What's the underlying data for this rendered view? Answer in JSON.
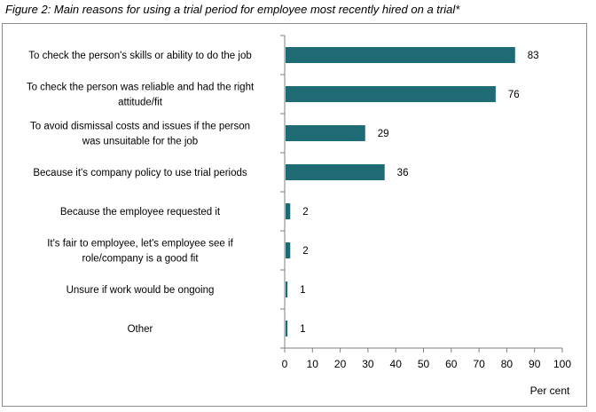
{
  "figure_title": "Figure 2: Main reasons for using a trial period for employee most recently hired on a trial*",
  "colors": {
    "bar": "#1f6b75",
    "axis": "#7f7f7f",
    "frame": "#8c8c8c"
  },
  "chart_data": {
    "type": "bar",
    "orientation": "horizontal",
    "categories": [
      [
        "To check the person's skills or ability to do the job"
      ],
      [
        "To check the person was reliable and had the right",
        "attitude/fit"
      ],
      [
        "To avoid dismissal costs and issues if the person",
        "was unsuitable for the job"
      ],
      [
        "Because it's company policy to use trial periods"
      ],
      [
        "Because the employee requested it"
      ],
      [
        "It's fair to employee, let's employee see if",
        "role/company is a good fit"
      ],
      [
        "Unsure if work would be ongoing"
      ],
      [
        "Other"
      ]
    ],
    "values": [
      83,
      76,
      29,
      36,
      2,
      2,
      1,
      1
    ],
    "value_labels": [
      "83",
      "76",
      "29",
      "36",
      "2",
      "2",
      "1",
      "1"
    ],
    "xlim": [
      0,
      100
    ],
    "x_ticks": [
      "0",
      "10",
      "20",
      "30",
      "40",
      "50",
      "60",
      "70",
      "80",
      "90",
      "100"
    ],
    "xlabel": "Per cent",
    "ylabel": "",
    "grid": false,
    "legend": "none"
  }
}
